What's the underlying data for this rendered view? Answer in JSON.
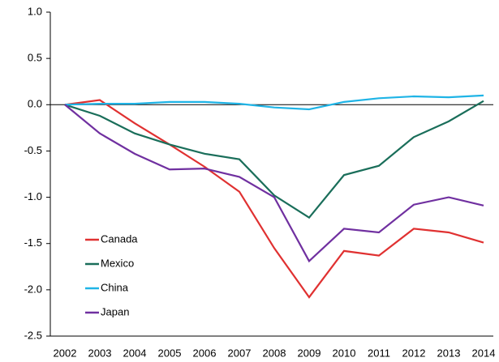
{
  "chart_data": {
    "type": "line",
    "categories": [
      "2002",
      "2003",
      "2004",
      "2005",
      "2006",
      "2007",
      "2008",
      "2009",
      "2010",
      "2011",
      "2012",
      "2013",
      "2014"
    ],
    "series": [
      {
        "name": "Canada",
        "color": "#e03131",
        "values": [
          0,
          0.05,
          -0.2,
          -0.43,
          -0.67,
          -0.94,
          -1.55,
          -2.08,
          -1.58,
          -1.63,
          -1.34,
          -1.38,
          -1.49
        ]
      },
      {
        "name": "Mexico",
        "color": "#1a6e5a",
        "values": [
          0,
          -0.12,
          -0.31,
          -0.43,
          -0.53,
          -0.59,
          -0.98,
          -1.22,
          -0.76,
          -0.66,
          -0.35,
          -0.18,
          0.04
        ]
      },
      {
        "name": "China",
        "color": "#1fb4e6",
        "values": [
          0,
          0.01,
          0.01,
          0.03,
          0.03,
          0.01,
          -0.03,
          -0.05,
          0.03,
          0.07,
          0.09,
          0.08,
          0.1
        ]
      },
      {
        "name": "Japan",
        "color": "#7030a0",
        "values": [
          0,
          -0.31,
          -0.53,
          -0.7,
          -0.69,
          -0.78,
          -1.0,
          -1.69,
          -1.34,
          -1.38,
          -1.08,
          -1.0,
          -1.09
        ]
      }
    ],
    "ylim": [
      -2.5,
      1.0
    ],
    "yticks": [
      {
        "value": 1,
        "label": "1.0"
      },
      0.5,
      {
        "value": 0,
        "label": "0.0"
      },
      -0.5,
      {
        "value": -1,
        "label": "-1.0"
      },
      -1.5,
      {
        "value": -2,
        "label": "-2.0"
      },
      -2.5
    ],
    "legend": "lower left"
  }
}
